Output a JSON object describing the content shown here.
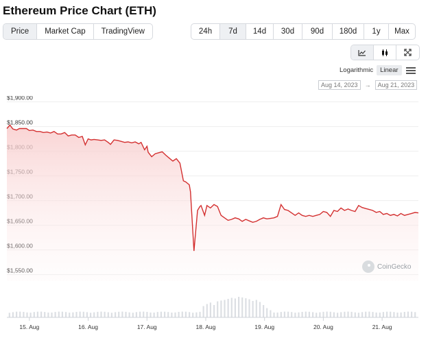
{
  "title": "Ethereum Price Chart (ETH)",
  "tabs": [
    {
      "label": "Price",
      "active": true
    },
    {
      "label": "Market Cap",
      "active": false
    },
    {
      "label": "TradingView",
      "active": false
    }
  ],
  "ranges": [
    {
      "label": "24h",
      "active": false
    },
    {
      "label": "7d",
      "active": true
    },
    {
      "label": "14d",
      "active": false
    },
    {
      "label": "30d",
      "active": false
    },
    {
      "label": "90d",
      "active": false
    },
    {
      "label": "180d",
      "active": false
    },
    {
      "label": "1y",
      "active": false
    },
    {
      "label": "Max",
      "active": false
    }
  ],
  "tools": [
    {
      "icon": "line-chart-icon",
      "active": true
    },
    {
      "icon": "candlestick-icon",
      "active": false
    },
    {
      "icon": "fullscreen-icon",
      "active": false
    }
  ],
  "scale": {
    "logarithmic": "Logarithmic",
    "linear": "Linear",
    "active": "linear"
  },
  "date_range": {
    "from": "Aug 14, 2023",
    "to": "Aug 21, 2023",
    "separator": "→"
  },
  "watermark": "CoinGecko",
  "colors": {
    "line": "#d32f2f",
    "fill_top": "#f8cccc",
    "volume": "#dcdfe3",
    "grid": "#eeeeee"
  },
  "chart_data": {
    "type": "area",
    "y_ticks": [
      {
        "value": 1900,
        "label": "$1,900.00"
      },
      {
        "value": 1850,
        "label": "$1,850.00"
      },
      {
        "value": 1800,
        "label": "$1,800.00"
      },
      {
        "value": 1750,
        "label": "$1,750.00"
      },
      {
        "value": 1700,
        "label": "$1,700.00"
      },
      {
        "value": 1650,
        "label": "$1,650.00"
      },
      {
        "value": 1600,
        "label": "$1,600.00"
      },
      {
        "value": 1550,
        "label": "$1,550.00"
      }
    ],
    "x_ticks": [
      {
        "day": 0,
        "label": "15. Aug"
      },
      {
        "day": 1,
        "label": "16. Aug"
      },
      {
        "day": 2,
        "label": "17. Aug"
      },
      {
        "day": 3,
        "label": "18. Aug"
      },
      {
        "day": 4,
        "label": "19. Aug"
      },
      {
        "day": 5,
        "label": "20. Aug"
      },
      {
        "day": 6,
        "label": "21. Aug"
      }
    ],
    "x_range": [
      -0.383,
      6.617
    ],
    "y_range": [
      1537,
      1912
    ],
    "series": [
      {
        "x": [
          -0.383,
          -0.33,
          -0.28,
          -0.22,
          -0.17,
          -0.11,
          -0.05,
          0.0,
          0.06,
          0.12,
          0.18,
          0.24,
          0.3,
          0.36,
          0.42,
          0.48,
          0.54,
          0.6,
          0.66,
          0.72,
          0.78,
          0.84,
          0.9,
          0.95,
          1.0,
          1.05,
          1.1,
          1.16,
          1.22,
          1.28,
          1.34,
          1.38,
          1.44,
          1.5,
          1.56,
          1.62,
          1.68,
          1.74,
          1.8,
          1.86,
          1.9,
          1.96,
          2.0,
          2.02,
          2.08,
          2.14,
          2.2,
          2.26,
          2.32,
          2.38,
          2.44,
          2.5,
          2.56,
          2.62,
          2.66,
          2.72,
          2.74,
          2.8,
          2.86,
          2.9,
          2.92,
          2.95,
          2.98,
          3.02,
          3.08,
          3.14,
          3.2,
          3.26,
          3.32,
          3.38,
          3.44,
          3.5,
          3.56,
          3.62,
          3.68,
          3.74,
          3.8,
          3.86,
          3.92,
          3.98,
          4.04,
          4.1,
          4.16,
          4.22,
          4.28,
          4.34,
          4.4,
          4.46,
          4.52,
          4.58,
          4.64,
          4.7,
          4.76,
          4.82,
          4.88,
          4.94,
          5.0,
          5.06,
          5.12,
          5.18,
          5.24,
          5.3,
          5.36,
          5.42,
          5.48,
          5.54,
          5.6,
          5.66,
          5.72,
          5.78,
          5.84,
          5.9,
          5.96,
          6.02,
          6.08,
          6.14,
          6.2,
          6.26,
          6.32,
          6.38,
          6.44,
          6.5,
          6.56,
          6.617
        ],
        "y": [
          1846,
          1853,
          1845,
          1843,
          1846,
          1846,
          1846,
          1842,
          1843,
          1840,
          1840,
          1838,
          1839,
          1837,
          1840,
          1835,
          1835,
          1838,
          1831,
          1833,
          1833,
          1828,
          1830,
          1813,
          1825,
          1823,
          1824,
          1823,
          1822,
          1823,
          1818,
          1814,
          1823,
          1822,
          1820,
          1818,
          1819,
          1817,
          1819,
          1815,
          1818,
          1803,
          1810,
          1798,
          1789,
          1795,
          1797,
          1799,
          1792,
          1786,
          1780,
          1785,
          1776,
          1740,
          1738,
          1732,
          1718,
          1598,
          1680,
          1688,
          1690,
          1680,
          1670,
          1690,
          1685,
          1692,
          1688,
          1670,
          1665,
          1660,
          1662,
          1665,
          1663,
          1658,
          1662,
          1659,
          1656,
          1658,
          1662,
          1665,
          1663,
          1664,
          1665,
          1668,
          1692,
          1682,
          1680,
          1675,
          1670,
          1675,
          1670,
          1668,
          1670,
          1668,
          1670,
          1672,
          1678,
          1676,
          1668,
          1680,
          1678,
          1685,
          1680,
          1683,
          1680,
          1678,
          1690,
          1686,
          1684,
          1682,
          1680,
          1676,
          1678,
          1672,
          1674,
          1670,
          1672,
          1669,
          1674,
          1670,
          1672,
          1674,
          1676,
          1675
        ]
      }
    ],
    "volume": [
      {
        "x": 2.95,
        "v": 0.55
      },
      {
        "x": 3.02,
        "v": 0.65
      },
      {
        "x": 3.08,
        "v": 0.72
      },
      {
        "x": 3.14,
        "v": 0.6
      },
      {
        "x": 3.2,
        "v": 0.78
      },
      {
        "x": 3.26,
        "v": 0.82
      },
      {
        "x": 3.32,
        "v": 0.85
      },
      {
        "x": 3.38,
        "v": 0.9
      },
      {
        "x": 3.44,
        "v": 0.95
      },
      {
        "x": 3.5,
        "v": 0.92
      },
      {
        "x": 3.56,
        "v": 1.0
      },
      {
        "x": 3.62,
        "v": 0.97
      },
      {
        "x": 3.68,
        "v": 0.93
      },
      {
        "x": 3.74,
        "v": 0.88
      },
      {
        "x": 3.8,
        "v": 0.8
      },
      {
        "x": 3.86,
        "v": 0.85
      },
      {
        "x": 3.92,
        "v": 0.75
      },
      {
        "x": 3.98,
        "v": 0.6
      },
      {
        "x": 4.04,
        "v": 0.45
      },
      {
        "x": 4.1,
        "v": 0.35
      }
    ]
  }
}
